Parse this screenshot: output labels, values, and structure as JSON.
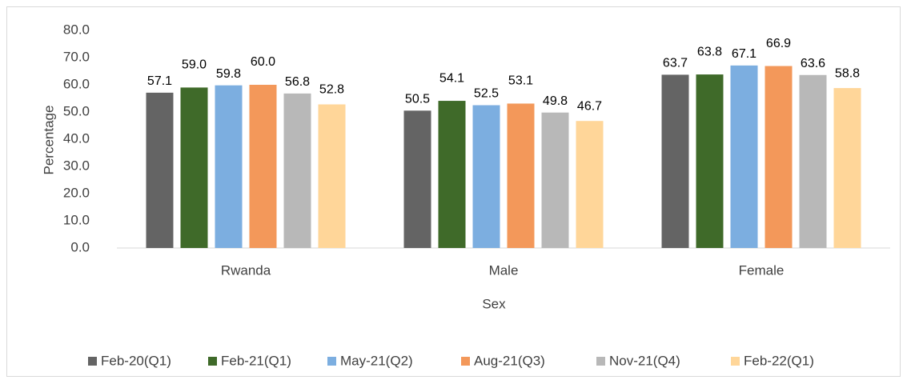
{
  "chart_data": {
    "type": "bar",
    "x_label": "Sex",
    "y_label": "Percentage",
    "categories": [
      "Rwanda",
      "Male",
      "Female"
    ],
    "series": [
      {
        "name": "Feb-20(Q1)",
        "color": "#646464",
        "values": [
          57.1,
          50.5,
          63.7
        ],
        "value_labels": [
          "57.1",
          "50.5",
          "63.7"
        ]
      },
      {
        "name": "Feb-21(Q1)",
        "color": "#3f6a29",
        "values": [
          59.0,
          54.1,
          63.8
        ],
        "value_labels": [
          "59.0",
          "54.1",
          "63.8"
        ]
      },
      {
        "name": "May-21(Q2)",
        "color": "#7caee0",
        "values": [
          59.8,
          52.5,
          67.1
        ],
        "value_labels": [
          "59.8",
          "52.5",
          "67.1"
        ]
      },
      {
        "name": "Aug-21(Q3)",
        "color": "#f3985a",
        "values": [
          60.0,
          53.1,
          66.9
        ],
        "value_labels": [
          "60.0",
          "53.1",
          "66.9"
        ]
      },
      {
        "name": "Nov-21(Q4)",
        "color": "#b8b8b8",
        "values": [
          56.8,
          49.8,
          63.6
        ],
        "value_labels": [
          "56.8",
          "49.8",
          "63.6"
        ]
      },
      {
        "name": "Feb-22(Q1)",
        "color": "#ffd699",
        "values": [
          52.8,
          46.7,
          58.8
        ],
        "value_labels": [
          "52.8",
          "46.7",
          "58.8"
        ]
      }
    ],
    "ylim": [
      0,
      80
    ],
    "yticks": [
      {
        "value": 0,
        "label": "0.0"
      },
      {
        "value": 10,
        "label": "10.0"
      },
      {
        "value": 20,
        "label": "20.0"
      },
      {
        "value": 30,
        "label": "30.0"
      },
      {
        "value": 40,
        "label": "40.0"
      },
      {
        "value": 50,
        "label": "50.0"
      },
      {
        "value": 60,
        "label": "60.0"
      },
      {
        "value": 70,
        "label": "70.0"
      },
      {
        "value": 80,
        "label": "80.0"
      }
    ],
    "grid": false,
    "legend": "bottom"
  }
}
